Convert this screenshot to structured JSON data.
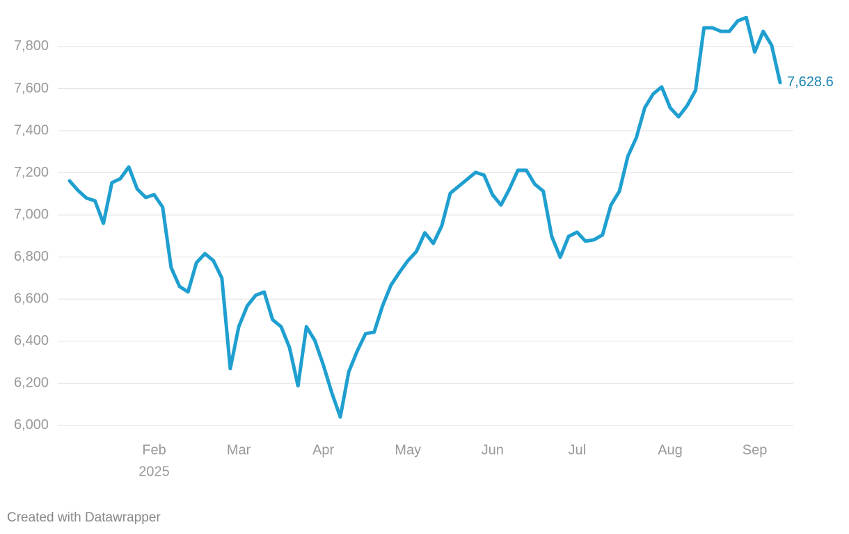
{
  "chart_data": {
    "type": "line",
    "categories": [
      null,
      null,
      null,
      null,
      null,
      null,
      null,
      null,
      null,
      null,
      "Feb",
      null,
      null,
      null,
      null,
      null,
      null,
      null,
      null,
      null,
      "Mar",
      null,
      null,
      null,
      null,
      null,
      null,
      null,
      null,
      null,
      "Apr",
      null,
      null,
      null,
      null,
      null,
      null,
      null,
      null,
      null,
      "May",
      null,
      null,
      null,
      null,
      null,
      null,
      null,
      null,
      null,
      "Jun",
      null,
      null,
      null,
      null,
      null,
      null,
      null,
      null,
      null,
      "Jul",
      null,
      null,
      null,
      null,
      null,
      null,
      null,
      null,
      null,
      null,
      "Aug",
      null,
      null,
      null,
      null,
      null,
      null,
      null,
      null,
      null,
      "Sep",
      null,
      null,
      null
    ],
    "year_label": "2025",
    "series": [
      {
        "color": "#1f9fd0",
        "values": [
          7162,
          7116,
          7080,
          7067,
          6960,
          7153,
          7172,
          7228,
          7123,
          7083,
          7096,
          7037,
          6750,
          6660,
          6634,
          6773,
          6816,
          6783,
          6700,
          6270,
          6469,
          6568,
          6618,
          6634,
          6502,
          6469,
          6370,
          6188,
          6469,
          6403,
          6287,
          6155,
          6040,
          6254,
          6353,
          6436,
          6443,
          6568,
          6667,
          6727,
          6783,
          6826,
          6915,
          6865,
          6948,
          7103,
          7136,
          7169,
          7202,
          7189,
          7096,
          7047,
          7123,
          7212,
          7212,
          7146,
          7113,
          6898,
          6799,
          6898,
          6918,
          6875,
          6882,
          6905,
          7047,
          7113,
          7278,
          7367,
          7509,
          7575,
          7608,
          7509,
          7466,
          7519,
          7592,
          7889,
          7889,
          7872,
          7872,
          7922,
          7938,
          7774,
          7872,
          7806,
          7628.6
        ],
        "value_labels": [
          null,
          null,
          null,
          null,
          null,
          null,
          null,
          null,
          null,
          null,
          null,
          null,
          null,
          null,
          null,
          null,
          null,
          null,
          null,
          null,
          null,
          null,
          null,
          null,
          null,
          null,
          null,
          null,
          null,
          null,
          null,
          null,
          null,
          null,
          null,
          null,
          null,
          null,
          null,
          null,
          null,
          null,
          null,
          null,
          null,
          null,
          null,
          null,
          null,
          null,
          null,
          null,
          null,
          null,
          null,
          null,
          null,
          null,
          null,
          null,
          null,
          null,
          null,
          null,
          null,
          null,
          null,
          null,
          null,
          null,
          null,
          null,
          null,
          null,
          null,
          null,
          null,
          null,
          null,
          null,
          null,
          null,
          null,
          null,
          "7,628.6"
        ]
      }
    ],
    "ylim": [
      5920,
      7960
    ],
    "yticks": [
      {
        "value": 6000,
        "label": "6,000"
      },
      {
        "value": 6200,
        "label": "6,200"
      },
      {
        "value": 6400,
        "label": "6,400"
      },
      {
        "value": 6600,
        "label": "6,600"
      },
      {
        "value": 6800,
        "label": "6,800"
      },
      {
        "value": 7000,
        "label": "7,000"
      },
      {
        "value": 7200,
        "label": "7,200"
      },
      {
        "value": 7400,
        "label": "7,400"
      },
      {
        "value": 7600,
        "label": "7,600"
      },
      {
        "value": 7800,
        "label": "7,800"
      }
    ],
    "grid": true,
    "credit": "Created with Datawrapper"
  }
}
